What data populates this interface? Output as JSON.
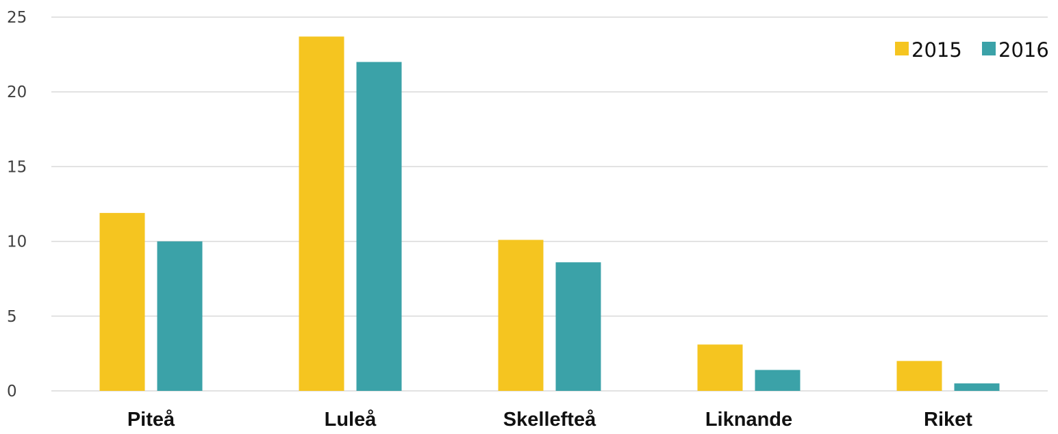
{
  "chart_data": {
    "type": "bar",
    "title": "",
    "xlabel": "",
    "ylabel": "",
    "categories": [
      "Piteå",
      "Luleå",
      "Skellefteå",
      "Liknande",
      "Riket"
    ],
    "series": [
      {
        "name": "2015",
        "color": "#F5C520",
        "values": [
          11.9,
          23.7,
          10.1,
          3.1,
          2.0
        ]
      },
      {
        "name": "2016",
        "color": "#3BA2A8",
        "values": [
          10.0,
          22.0,
          8.6,
          1.4,
          0.5
        ]
      }
    ],
    "ylim": [
      0,
      25
    ],
    "yticks": [
      0,
      5,
      10,
      15,
      20,
      25
    ],
    "grid": true,
    "legend_position": "top-right"
  }
}
